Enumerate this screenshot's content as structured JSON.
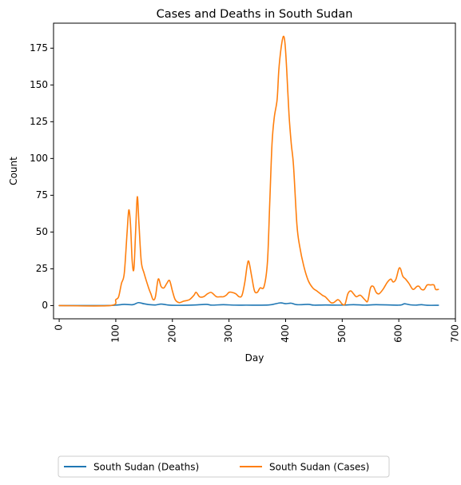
{
  "chart_data": {
    "type": "line",
    "title": "Cases and Deaths in South Sudan",
    "xlabel": "Day",
    "ylabel": "Count",
    "xlim": [
      -10,
      700
    ],
    "ylim": [
      -9,
      192
    ],
    "xticks": [
      0,
      100,
      200,
      300,
      400,
      500,
      600,
      700
    ],
    "yticks": [
      0,
      25,
      50,
      75,
      100,
      125,
      150,
      175
    ],
    "xtick_rotation": 90,
    "grid": false,
    "legend_position": "below-center",
    "legend_columns": 2,
    "series": [
      {
        "name": "South Sudan (Deaths)",
        "color": "#1f77b4",
        "points": [
          [
            0,
            0
          ],
          [
            80,
            0
          ],
          [
            100,
            0.3
          ],
          [
            115,
            0.8
          ],
          [
            130,
            0.6
          ],
          [
            140,
            2
          ],
          [
            150,
            1.2
          ],
          [
            160,
            0.6
          ],
          [
            170,
            0.4
          ],
          [
            180,
            1
          ],
          [
            190,
            0.5
          ],
          [
            200,
            0.2
          ],
          [
            220,
            0.2
          ],
          [
            240,
            0.4
          ],
          [
            260,
            0.8
          ],
          [
            270,
            0.3
          ],
          [
            290,
            0.6
          ],
          [
            310,
            0.3
          ],
          [
            330,
            0.3
          ],
          [
            370,
            0.4
          ],
          [
            390,
            1.8
          ],
          [
            400,
            1.3
          ],
          [
            410,
            1.6
          ],
          [
            420,
            0.6
          ],
          [
            440,
            0.8
          ],
          [
            450,
            0.3
          ],
          [
            470,
            0.4
          ],
          [
            500,
            0.3
          ],
          [
            520,
            0.6
          ],
          [
            540,
            0.3
          ],
          [
            560,
            0.6
          ],
          [
            600,
            0.3
          ],
          [
            610,
            1.2
          ],
          [
            620,
            0.5
          ],
          [
            630,
            0.3
          ],
          [
            640,
            0.6
          ],
          [
            650,
            0.2
          ],
          [
            670,
            0.2
          ]
        ]
      },
      {
        "name": "South Sudan (Cases)",
        "color": "#ff7f0e",
        "points": [
          [
            0,
            0
          ],
          [
            90,
            0
          ],
          [
            100,
            4
          ],
          [
            105,
            6
          ],
          [
            110,
            15
          ],
          [
            115,
            22
          ],
          [
            120,
            50
          ],
          [
            123,
            65
          ],
          [
            126,
            55
          ],
          [
            129,
            30
          ],
          [
            132,
            25
          ],
          [
            135,
            50
          ],
          [
            138,
            74
          ],
          [
            141,
            55
          ],
          [
            145,
            30
          ],
          [
            150,
            22
          ],
          [
            158,
            12
          ],
          [
            162,
            8
          ],
          [
            166,
            4
          ],
          [
            170,
            6
          ],
          [
            175,
            18
          ],
          [
            180,
            13
          ],
          [
            185,
            12
          ],
          [
            190,
            15
          ],
          [
            195,
            17
          ],
          [
            200,
            10
          ],
          [
            205,
            4
          ],
          [
            212,
            2
          ],
          [
            220,
            3
          ],
          [
            230,
            4
          ],
          [
            238,
            7
          ],
          [
            242,
            9
          ],
          [
            248,
            6
          ],
          [
            255,
            6
          ],
          [
            262,
            8
          ],
          [
            268,
            9
          ],
          [
            272,
            8
          ],
          [
            278,
            6
          ],
          [
            285,
            6
          ],
          [
            290,
            6
          ],
          [
            295,
            7
          ],
          [
            300,
            9
          ],
          [
            305,
            9
          ],
          [
            312,
            8
          ],
          [
            318,
            6
          ],
          [
            323,
            7
          ],
          [
            328,
            16
          ],
          [
            332,
            27
          ],
          [
            335,
            30
          ],
          [
            340,
            20
          ],
          [
            345,
            10
          ],
          [
            350,
            9
          ],
          [
            355,
            12
          ],
          [
            362,
            13
          ],
          [
            368,
            30
          ],
          [
            372,
            70
          ],
          [
            376,
            110
          ],
          [
            380,
            128
          ],
          [
            385,
            140
          ],
          [
            388,
            160
          ],
          [
            392,
            175
          ],
          [
            396,
            183
          ],
          [
            399,
            178
          ],
          [
            402,
            160
          ],
          [
            406,
            130
          ],
          [
            410,
            110
          ],
          [
            414,
            95
          ],
          [
            420,
            55
          ],
          [
            425,
            40
          ],
          [
            432,
            27
          ],
          [
            440,
            17
          ],
          [
            448,
            12
          ],
          [
            455,
            10
          ],
          [
            465,
            7
          ],
          [
            470,
            6
          ],
          [
            475,
            4
          ],
          [
            480,
            2
          ],
          [
            485,
            2
          ],
          [
            492,
            4
          ],
          [
            496,
            3
          ],
          [
            500,
            1
          ],
          [
            505,
            1
          ],
          [
            510,
            8
          ],
          [
            515,
            10
          ],
          [
            520,
            8
          ],
          [
            525,
            6
          ],
          [
            532,
            7
          ],
          [
            540,
            4
          ],
          [
            545,
            3
          ],
          [
            550,
            12
          ],
          [
            555,
            13
          ],
          [
            560,
            9
          ],
          [
            565,
            8
          ],
          [
            572,
            11
          ],
          [
            580,
            16
          ],
          [
            586,
            18
          ],
          [
            590,
            16
          ],
          [
            595,
            18
          ],
          [
            600,
            25
          ],
          [
            603,
            25
          ],
          [
            607,
            20
          ],
          [
            612,
            18
          ],
          [
            618,
            15
          ],
          [
            625,
            11
          ],
          [
            632,
            13
          ],
          [
            636,
            13
          ],
          [
            640,
            11
          ],
          [
            645,
            11
          ],
          [
            650,
            14
          ],
          [
            656,
            14
          ],
          [
            662,
            14
          ],
          [
            665,
            11
          ],
          [
            670,
            11
          ]
        ]
      }
    ]
  }
}
